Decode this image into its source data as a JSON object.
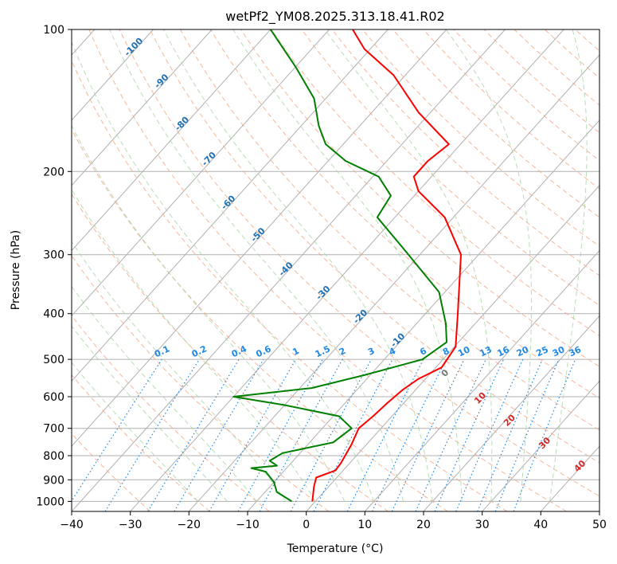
{
  "chart_data": {
    "type": "line",
    "title": "wetPf2_YM08.2025.313.18.41.R02",
    "xlabel": "Temperature (°C)",
    "ylabel": "Pressure (hPa)",
    "xlim": [
      -40,
      50
    ],
    "ylim": [
      1050,
      100
    ],
    "y_scale": "log",
    "skew": true,
    "grid": true,
    "x_ticks": [
      -40,
      -30,
      -20,
      -10,
      0,
      10,
      20,
      30,
      40,
      50
    ],
    "y_ticks": [
      100,
      200,
      300,
      400,
      500,
      600,
      700,
      800,
      900,
      1000
    ],
    "series": [
      {
        "color": "#ff0000",
        "points": [
          [
            -0.5,
            1000
          ],
          [
            -2.5,
            930
          ],
          [
            -3.5,
            890
          ],
          [
            -1.3,
            860
          ],
          [
            -1.5,
            830
          ],
          [
            -2.5,
            760
          ],
          [
            -3.8,
            700
          ],
          [
            -3.2,
            660
          ],
          [
            -2.8,
            620
          ],
          [
            -2.2,
            580
          ],
          [
            -1.2,
            550
          ],
          [
            1.0,
            520
          ],
          [
            0.2,
            470
          ],
          [
            -4.5,
            400
          ],
          [
            -13.0,
            300
          ],
          [
            -21.5,
            250
          ],
          [
            -30.0,
            220
          ],
          [
            -33.0,
            205
          ],
          [
            -33.0,
            190
          ],
          [
            -32.0,
            175
          ],
          [
            -42.0,
            150
          ],
          [
            -52.0,
            125
          ],
          [
            -61.0,
            110
          ],
          [
            -66.0,
            100
          ]
        ]
      },
      {
        "color": "#008000",
        "points": [
          [
            -4.0,
            1000
          ],
          [
            -8.0,
            955
          ],
          [
            -10.0,
            910
          ],
          [
            -13.0,
            865
          ],
          [
            -16.0,
            850
          ],
          [
            -12.0,
            840
          ],
          [
            -14.0,
            820
          ],
          [
            -13.0,
            790
          ],
          [
            -6.0,
            750
          ],
          [
            -5.0,
            700
          ],
          [
            -9.0,
            660
          ],
          [
            -20.0,
            625
          ],
          [
            -30.0,
            600
          ],
          [
            -18.0,
            575
          ],
          [
            -11.0,
            540
          ],
          [
            -3.5,
            500
          ],
          [
            -2.0,
            460
          ],
          [
            -5.0,
            420
          ],
          [
            -11.0,
            360
          ],
          [
            -24.0,
            290
          ],
          [
            -33.0,
            250
          ],
          [
            -34.0,
            225
          ],
          [
            -39.0,
            205
          ],
          [
            -47.0,
            190
          ],
          [
            -53.0,
            175
          ],
          [
            -57.0,
            160
          ],
          [
            -62.0,
            140
          ],
          [
            -70.0,
            120
          ],
          [
            -80.0,
            100
          ]
        ]
      }
    ],
    "mixing_ratio_labels": [
      "0.1",
      "0.2",
      "0.4",
      "0.6",
      "1",
      "1.5",
      "2",
      "3",
      "4",
      "6",
      "8",
      "10",
      "13",
      "16",
      "20",
      "25",
      "30",
      "36"
    ],
    "dry_adiabat_labels": [
      "-100",
      "-90",
      "-80",
      "-70",
      "-60",
      "-50",
      "-40",
      "-30",
      "-20",
      "-10"
    ],
    "moist_adiabat_labels": [
      "0",
      "10",
      "20",
      "30",
      "40"
    ]
  }
}
